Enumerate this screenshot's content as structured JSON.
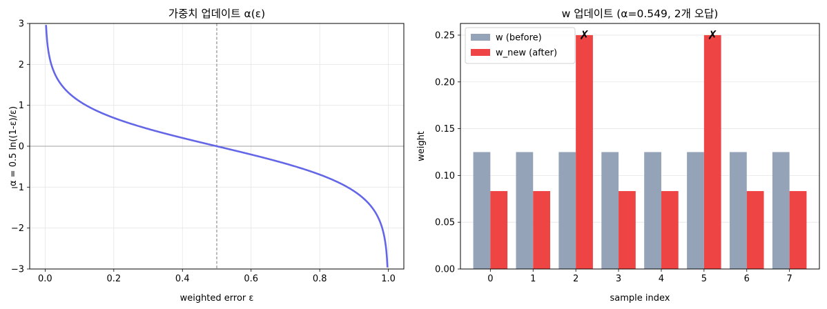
{
  "chart_data": [
    {
      "type": "line",
      "title": "가중치 업데이트 α(ε)",
      "xlabel": "weighted error ε",
      "ylabel": "α = 0.5 ln((1-ε)/ε)",
      "xlim": [
        -0.045,
        1.045
      ],
      "ylim": [
        -3,
        3
      ],
      "xticks": [
        0.0,
        0.2,
        0.4,
        0.6,
        0.8,
        1.0
      ],
      "xtick_labels": [
        "0.0",
        "0.2",
        "0.4",
        "0.6",
        "0.8",
        "1.0"
      ],
      "yticks": [
        -3,
        -2,
        -1,
        0,
        1,
        2,
        3
      ],
      "ytick_labels": [
        "−3",
        "−2",
        "−1",
        "0",
        "1",
        "2",
        "3"
      ],
      "function": "0.5*ln((1-x)/x)",
      "x_range": [
        0.001,
        0.999
      ],
      "reference_lines": {
        "vertical_x": 0.5,
        "horizontal_y": 0
      },
      "grid": true,
      "line_color": "#6366e6"
    },
    {
      "type": "bar",
      "title": "w 업데이트 (α=0.549, 2개 오답)",
      "xlabel": "sample index",
      "ylabel": "weight",
      "categories": [
        "0",
        "1",
        "2",
        "3",
        "4",
        "5",
        "6",
        "7"
      ],
      "series": [
        {
          "name": "w (before)",
          "color": "#94a3b8",
          "values": [
            0.125,
            0.125,
            0.125,
            0.125,
            0.125,
            0.125,
            0.125,
            0.125
          ]
        },
        {
          "name": "w_new (after)",
          "color": "#ef4444",
          "values": [
            0.0833,
            0.0833,
            0.25,
            0.0833,
            0.0833,
            0.25,
            0.0833,
            0.0833
          ]
        }
      ],
      "ylim": [
        0,
        0.2625
      ],
      "yticks": [
        0.0,
        0.05,
        0.1,
        0.15,
        0.2,
        0.25
      ],
      "ytick_labels": [
        "0.00",
        "0.05",
        "0.10",
        "0.15",
        "0.20",
        "0.25"
      ],
      "annotations": [
        {
          "category": "2",
          "text": "✗",
          "color": "#ff0000"
        },
        {
          "category": "5",
          "text": "✗",
          "color": "#ff0000"
        }
      ],
      "legend": "top-left",
      "grid": true
    }
  ]
}
